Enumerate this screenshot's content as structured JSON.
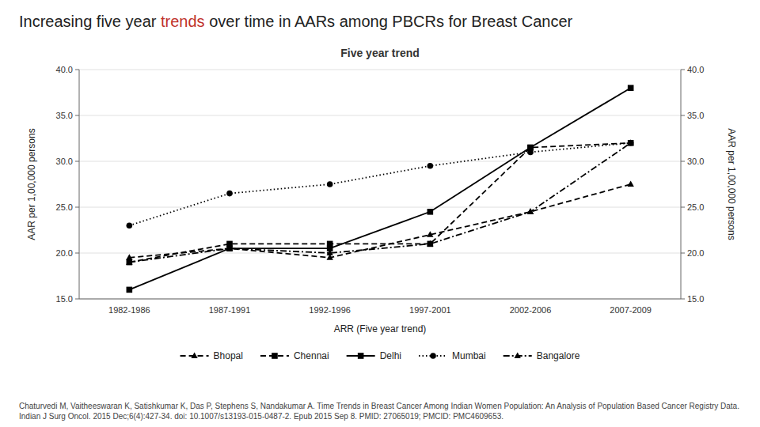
{
  "chart_data": {
    "type": "line",
    "title": [
      {
        "text": "Increasing five year "
      },
      {
        "text": "trends",
        "color": "#C0312B"
      },
      {
        "text": " over time in AARs among PBCRs for Breast Cancer"
      }
    ],
    "subtitle": "Five year trend",
    "xlabel": "ARR (Five year trend)",
    "ylabel": "AAR per 1,00,000 persons",
    "y2label": "AAR per 1,00,000 persons",
    "categories": [
      "1982-1986",
      "1987-1991",
      "1992-1996",
      "1997-2001",
      "2002-2006",
      "2007-2009"
    ],
    "series": [
      {
        "name": "Bhopal",
        "color": "#000000",
        "marker": "triangle",
        "line_style": "dashed",
        "values": [
          19.5,
          20.5,
          19.5,
          22.0,
          24.5,
          27.5
        ]
      },
      {
        "name": "Chennai",
        "color": "#000000",
        "marker": "square",
        "line_style": "dashed",
        "values": [
          19.0,
          21.0,
          21.0,
          21.0,
          31.5,
          32.0
        ]
      },
      {
        "name": "Delhi",
        "color": "#000000",
        "marker": "square",
        "line_style": "solid",
        "values": [
          16.0,
          20.5,
          20.5,
          24.5,
          31.5,
          38.0
        ]
      },
      {
        "name": "Mumbai",
        "color": "#000000",
        "marker": "circle",
        "line_style": "dotted",
        "values": [
          23.0,
          26.5,
          27.5,
          29.5,
          31.0,
          32.0
        ]
      },
      {
        "name": "Bangalore",
        "color": "#000000",
        "marker": "triangle",
        "line_style": "dashdot",
        "values": [
          19.0,
          20.5,
          20.0,
          21.0,
          24.5,
          32.0
        ]
      }
    ],
    "ylim": [
      15.0,
      40.0
    ],
    "yticks": [
      {
        "value": 15.0,
        "label": "15.0"
      },
      {
        "value": 20.0,
        "label": "20.0"
      },
      {
        "value": 25.0,
        "label": "25.0"
      },
      {
        "value": 30.0,
        "label": "30.0"
      },
      {
        "value": 35.0,
        "label": "35.0"
      },
      {
        "value": 40.0,
        "label": "40.0"
      }
    ],
    "y2lim": [
      15.0,
      40.0
    ],
    "y2ticks": [
      {
        "value": 15.0,
        "label": "15.0"
      },
      {
        "value": 20.0,
        "label": "20.0"
      },
      {
        "value": 25.0,
        "label": "25.0"
      },
      {
        "value": 30.0,
        "label": "30.0"
      },
      {
        "value": 35.0,
        "label": "35.0"
      },
      {
        "value": 40.0,
        "label": "40.0"
      }
    ],
    "grid": true,
    "legend": "bottom",
    "annotations": [
      {
        "text": "Chaturvedi M, Vaitheeswaran K, Satishkumar K, Das P, Stephens S, Nandakumar A. Time Trends in Breast Cancer Among Indian Women Population: An Analysis of Population Based Cancer Registry Data. Indian J Surg Oncol. 2015 Dec;6(4):427-34. doi: 10.1007/s13193-015-0487-2. Epub 2015 Sep 8. PMID: 27065019; PMCID: PMC4609653."
      }
    ]
  }
}
